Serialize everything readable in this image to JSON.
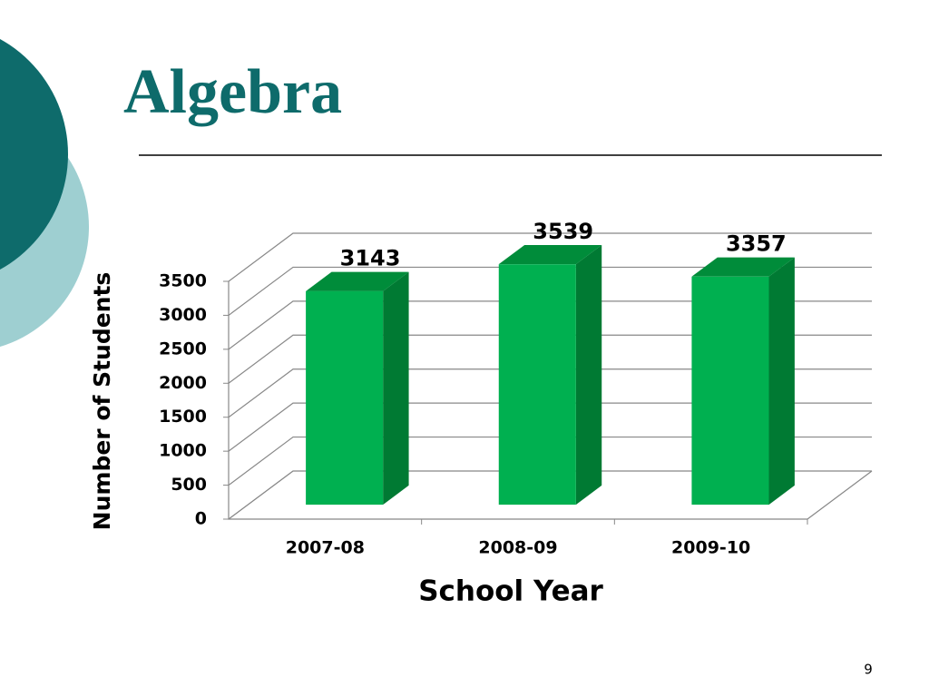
{
  "chart_data": {
    "type": "bar3d",
    "title": "Algebra",
    "categories": [
      "2007-08",
      "2008-09",
      "2009-10"
    ],
    "values": [
      3143,
      3539,
      3357
    ],
    "color": "#00b050",
    "ylim": [
      0,
      3500
    ],
    "yticks": [
      0,
      500,
      1000,
      1500,
      2000,
      2500,
      3000,
      3500
    ],
    "grid": true,
    "x_label": "School Year",
    "y_label": "Number of Students"
  },
  "page_number": "9"
}
